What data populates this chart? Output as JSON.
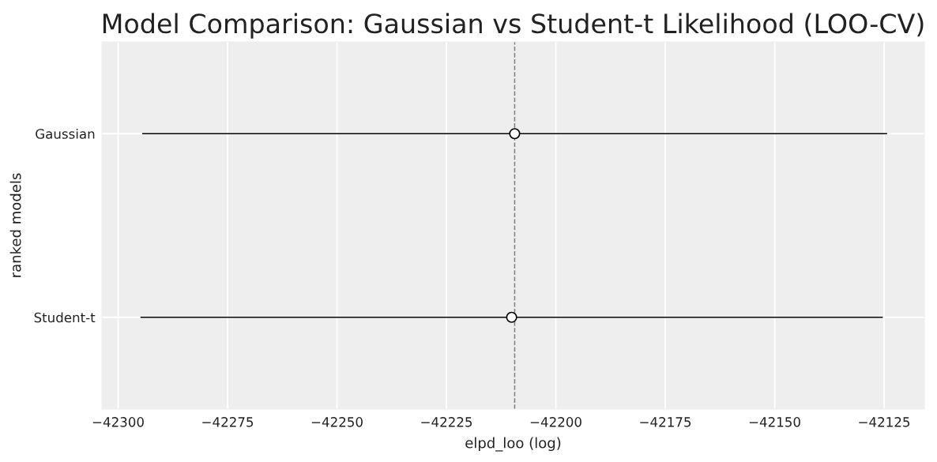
{
  "chart_data": {
    "type": "scatter",
    "title": "Model Comparison: Gaussian vs Student-t Likelihood (LOO-CV)",
    "xlabel": "elpd_loo (log)",
    "ylabel": "ranked models",
    "orientation": "horizontal",
    "categories": [
      "Gaussian",
      "Student-t"
    ],
    "series": [
      {
        "color": "#000000",
        "values": [
          -42209.4,
          -42210.1
        ],
        "errors": [
          85.1,
          84.8
        ]
      }
    ],
    "xlim": [
      -42303.7,
      -42115.8
    ],
    "xticks": [
      {
        "value": -42300,
        "label": "−42300"
      },
      {
        "value": -42275,
        "label": "−42275"
      },
      {
        "value": -42250,
        "label": "−42250"
      },
      {
        "value": -42225,
        "label": "−42225"
      },
      {
        "value": -42200,
        "label": "−42200"
      },
      {
        "value": -42175,
        "label": "−42175"
      },
      {
        "value": -42150,
        "label": "−42150"
      },
      {
        "value": -42125,
        "label": "−42125"
      }
    ],
    "ref_lines": [
      {
        "axis": "x",
        "value": -42209.4,
        "color": "#808080",
        "line_style": "dashed"
      }
    ],
    "grid": true,
    "marker": "circle"
  }
}
